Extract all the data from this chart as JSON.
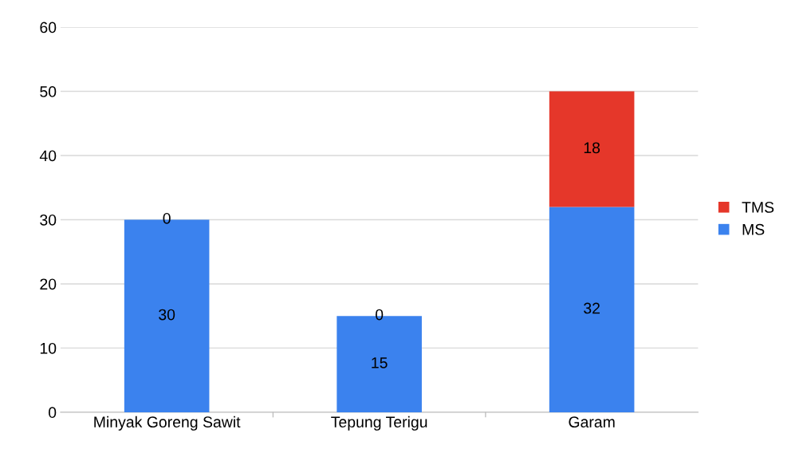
{
  "chart_data": {
    "type": "bar",
    "stacked": true,
    "categories": [
      "Minyak Goreng Sawit",
      "Tepung Terigu",
      "Garam"
    ],
    "series": [
      {
        "name": "MS",
        "color": "#3b82ee",
        "values": [
          30,
          15,
          32
        ]
      },
      {
        "name": "TMS",
        "color": "#e5372a",
        "values": [
          0,
          0,
          18
        ]
      }
    ],
    "ylim": [
      0,
      60
    ],
    "yticks": [
      0,
      10,
      20,
      30,
      40,
      50,
      60
    ],
    "grid": "y",
    "legend": "right",
    "data_labels": true
  }
}
